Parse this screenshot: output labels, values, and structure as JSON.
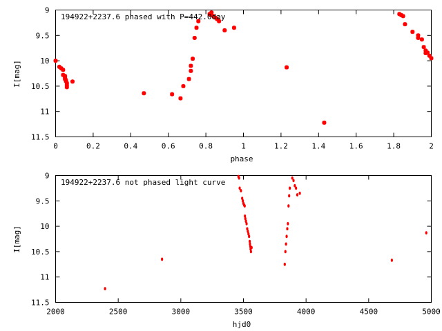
{
  "colors": {
    "points": "#ff0000",
    "axes": "#000000",
    "background": "#ffffff"
  },
  "chart_data": [
    {
      "type": "scatter",
      "title": "194922+2237.6 phased with P=442.0day",
      "xlabel": "phase",
      "ylabel": "I[mag]",
      "xlim": [
        0,
        2
      ],
      "ylim": [
        9,
        11.5
      ],
      "y_inverted": true,
      "grid": false,
      "marker": "asterisk",
      "x_ticks": [
        "0",
        "0.2",
        "0.4",
        "0.6",
        "0.8",
        "1",
        "1.2",
        "1.4",
        "1.6",
        "1.8",
        "2"
      ],
      "y_ticks": [
        "9",
        "9.5",
        "10",
        "10.5",
        "11",
        "11.5"
      ],
      "series": [
        {
          "points": [
            [
              0.0,
              10.0
            ],
            [
              0.02,
              10.12
            ],
            [
              0.03,
              10.15
            ],
            [
              0.04,
              10.18
            ],
            [
              0.04,
              10.28
            ],
            [
              0.05,
              10.3
            ],
            [
              0.05,
              10.33
            ],
            [
              0.05,
              10.36
            ],
            [
              0.055,
              10.38
            ],
            [
              0.055,
              10.4
            ],
            [
              0.06,
              10.44
            ],
            [
              0.06,
              10.48
            ],
            [
              0.06,
              10.52
            ],
            [
              0.09,
              10.41
            ],
            [
              0.47,
              10.64
            ],
            [
              0.62,
              10.66
            ],
            [
              0.665,
              10.74
            ],
            [
              0.68,
              10.5
            ],
            [
              0.71,
              10.36
            ],
            [
              0.72,
              10.2
            ],
            [
              0.72,
              10.1
            ],
            [
              0.73,
              9.96
            ],
            [
              0.74,
              9.55
            ],
            [
              0.75,
              9.35
            ],
            [
              0.76,
              9.22
            ],
            [
              0.82,
              9.08
            ],
            [
              0.83,
              9.05
            ],
            [
              0.83,
              9.1
            ],
            [
              0.84,
              9.12
            ],
            [
              0.85,
              9.15
            ],
            [
              0.86,
              9.18
            ],
            [
              0.87,
              9.22
            ],
            [
              0.9,
              9.4
            ],
            [
              0.95,
              9.35
            ],
            [
              1.23,
              10.13
            ],
            [
              1.43,
              11.22
            ],
            [
              1.83,
              9.08
            ],
            [
              1.84,
              9.1
            ],
            [
              1.85,
              9.12
            ],
            [
              1.86,
              9.28
            ],
            [
              1.9,
              9.43
            ],
            [
              1.93,
              9.5
            ],
            [
              1.93,
              9.55
            ],
            [
              1.95,
              9.58
            ],
            [
              1.96,
              9.73
            ],
            [
              1.97,
              9.8
            ],
            [
              1.97,
              9.85
            ],
            [
              1.98,
              9.84
            ],
            [
              1.99,
              9.9
            ],
            [
              2.0,
              9.95
            ]
          ]
        }
      ]
    },
    {
      "type": "scatter",
      "title": "194922+2237.6 not phased light curve",
      "xlabel": "hjd0",
      "ylabel": "I[mag]",
      "xlim": [
        2000,
        5000
      ],
      "ylim": [
        9,
        11.5
      ],
      "y_inverted": true,
      "grid": false,
      "marker": "dot",
      "x_ticks": [
        "2000",
        "2500",
        "3000",
        "3500",
        "4000",
        "4500",
        "5000"
      ],
      "y_ticks": [
        "9",
        "9.5",
        "10",
        "10.5",
        "11",
        "11.5"
      ],
      "series": [
        {
          "points": [
            [
              2395,
              11.23
            ],
            [
              2850,
              10.65
            ],
            [
              3460,
              9.02
            ],
            [
              3465,
              9.05
            ],
            [
              3470,
              9.25
            ],
            [
              3480,
              9.3
            ],
            [
              3490,
              9.45
            ],
            [
              3495,
              9.5
            ],
            [
              3500,
              9.55
            ],
            [
              3505,
              9.58
            ],
            [
              3510,
              9.6
            ],
            [
              3512,
              9.8
            ],
            [
              3515,
              9.85
            ],
            [
              3520,
              9.9
            ],
            [
              3525,
              9.95
            ],
            [
              3530,
              10.05
            ],
            [
              3535,
              10.1
            ],
            [
              3540,
              10.15
            ],
            [
              3545,
              10.2
            ],
            [
              3550,
              10.3
            ],
            [
              3552,
              10.35
            ],
            [
              3555,
              10.4
            ],
            [
              3557,
              10.45
            ],
            [
              3560,
              10.5
            ],
            [
              3565,
              10.42
            ],
            [
              3830,
              10.75
            ],
            [
              3835,
              10.5
            ],
            [
              3840,
              10.35
            ],
            [
              3845,
              10.2
            ],
            [
              3850,
              10.05
            ],
            [
              3855,
              9.95
            ],
            [
              3860,
              9.6
            ],
            [
              3865,
              9.4
            ],
            [
              3870,
              9.25
            ],
            [
              3890,
              9.05
            ],
            [
              3900,
              9.1
            ],
            [
              3910,
              9.2
            ],
            [
              3920,
              9.25
            ],
            [
              3930,
              9.38
            ],
            [
              3950,
              9.35
            ],
            [
              4685,
              10.67
            ],
            [
              4960,
              10.13
            ]
          ]
        }
      ]
    }
  ]
}
